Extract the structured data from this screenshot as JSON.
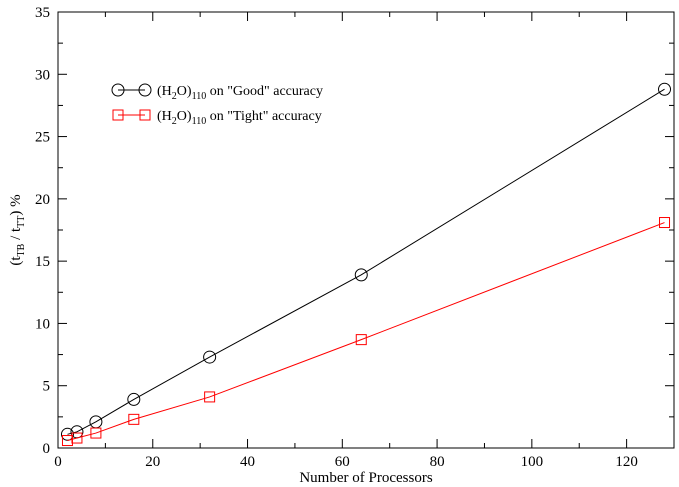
{
  "chart_data": {
    "type": "line",
    "xlabel": "Number of Processors",
    "ylabel": {
      "prefix": "(t",
      "sub1": "TB",
      "mid": " / t",
      "sub2": "TT",
      "suffix": ") %"
    },
    "xlim": [
      0,
      130
    ],
    "ylim": [
      0,
      35
    ],
    "xticks": [
      0,
      20,
      40,
      60,
      80,
      100,
      120
    ],
    "yticks": [
      0,
      5,
      10,
      15,
      20,
      25,
      30,
      35
    ],
    "grid": false,
    "legend_position": "upper-left",
    "series": [
      {
        "name_parts": {
          "a": "(H",
          "b": "2",
          "c": "O)",
          "d": "110",
          "e": " on \"Good\" accuracy"
        },
        "color": "#000000",
        "marker": "circle",
        "x": [
          2,
          4,
          8,
          16,
          32,
          64,
          128
        ],
        "y": [
          1.1,
          1.3,
          2.1,
          3.9,
          7.3,
          13.9,
          28.8
        ]
      },
      {
        "name_parts": {
          "a": "(H",
          "b": "2",
          "c": "O)",
          "d": "110",
          "e": " on \"Tight\" accuracy"
        },
        "color": "#ff0000",
        "marker": "square",
        "x": [
          2,
          4,
          8,
          16,
          32,
          64,
          128
        ],
        "y": [
          0.6,
          0.8,
          1.2,
          2.3,
          4.1,
          8.7,
          18.1
        ]
      }
    ]
  }
}
